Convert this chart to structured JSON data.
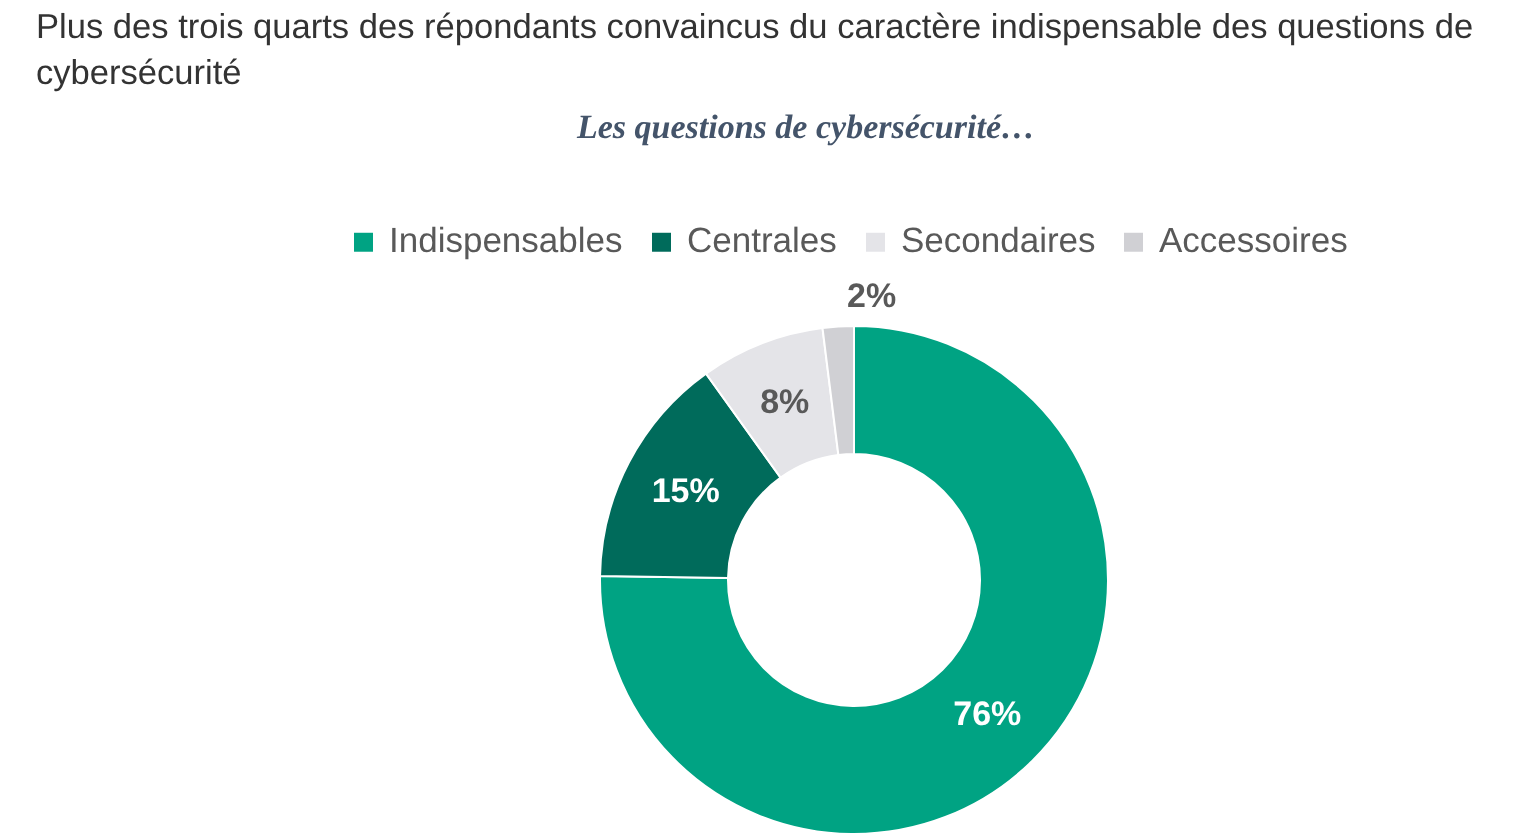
{
  "chart_data": {
    "type": "donut",
    "title": "Plus des trois quarts des répondants convaincus du caractère indispensable des questions de cybersécurité",
    "subtitle": "Les questions de cybersécurité…",
    "categories": [
      "Indispensables",
      "Centrales",
      "Secondaires",
      "Accessoires"
    ],
    "values": [
      76,
      15,
      8,
      2
    ],
    "colors": [
      "#00a383",
      "#006b5b",
      "#e4e4e8",
      "#d0d0d4"
    ],
    "value_labels": [
      "76%",
      "15%",
      "8%",
      "2%"
    ],
    "legend": "top"
  }
}
